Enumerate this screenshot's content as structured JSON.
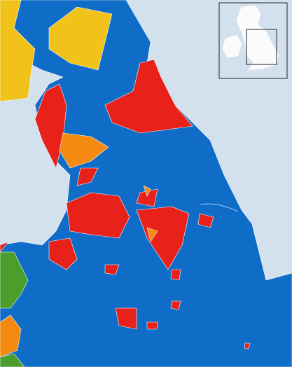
{
  "map": {
    "region_colors": [
      "#0f6dc8",
      "#e8211b",
      "#f48a10",
      "#f0c21a",
      "#4b9e2e"
    ],
    "sea_color": "#d3e0ee",
    "inset_land_color": "#fbfbfb"
  }
}
